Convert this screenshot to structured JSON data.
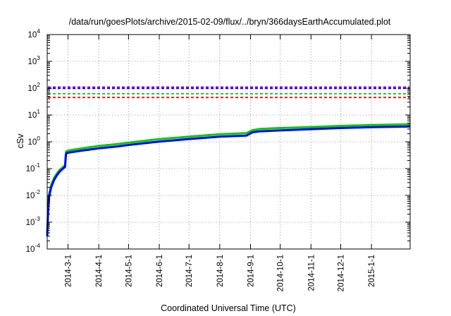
{
  "chart_data": {
    "type": "line",
    "title": "/data/run/goesPlots/archive/2015-02-09/flux/../bryn/366daysEarthAccumulated.plot",
    "xlabel": "Coordinated Universal Time (UTC)",
    "ylabel": "cSv",
    "yscale": "log",
    "ylim": [
      0.0001,
      10000
    ],
    "xlim": [
      "2014-02-08",
      "2015-02-09"
    ],
    "grid": true,
    "legend": "none",
    "y_ticks": [
      {
        "base": "10",
        "exp": "-4",
        "value": 0.0001
      },
      {
        "base": "10",
        "exp": "-3",
        "value": 0.001
      },
      {
        "base": "10",
        "exp": "-2",
        "value": 0.01
      },
      {
        "base": "10",
        "exp": "-1",
        "value": 0.1
      },
      {
        "base": "10",
        "exp": "0",
        "value": 1
      },
      {
        "base": "10",
        "exp": "1",
        "value": 10
      },
      {
        "base": "10",
        "exp": "2",
        "value": 100
      },
      {
        "base": "10",
        "exp": "3",
        "value": 1000
      },
      {
        "base": "10",
        "exp": "4",
        "value": 10000
      }
    ],
    "x_ticks": [
      {
        "label": "2014-3-1",
        "date": "2014-03-01"
      },
      {
        "label": "2014-4-1",
        "date": "2014-04-01"
      },
      {
        "label": "2014-5-1",
        "date": "2014-05-01"
      },
      {
        "label": "2014-6-1",
        "date": "2014-06-01"
      },
      {
        "label": "2014-7-1",
        "date": "2014-07-01"
      },
      {
        "label": "2014-8-1",
        "date": "2014-08-01"
      },
      {
        "label": "2014-9-1",
        "date": "2014-09-01"
      },
      {
        "label": "2014-10-1",
        "date": "2014-10-01"
      },
      {
        "label": "2014-11-1",
        "date": "2014-11-01"
      },
      {
        "label": "2014-12-1",
        "date": "2014-12-01"
      },
      {
        "label": "2015-1-1",
        "date": "2015-01-01"
      }
    ],
    "thresholds": [
      {
        "value": 110,
        "color": "#9400d3",
        "dash": "dashed"
      },
      {
        "value": 98,
        "color": "#0000ff",
        "dash": "dashed"
      },
      {
        "value": 62,
        "color": "#00cc00",
        "dash": "dashed"
      },
      {
        "value": 45,
        "color": "#ff0000",
        "dash": "dashed"
      }
    ],
    "series": [
      {
        "color": "#00cc00",
        "width": 3,
        "points": [
          [
            "2014-02-08",
            0.0004
          ],
          [
            "2014-02-09",
            0.004
          ],
          [
            "2014-02-10",
            0.011
          ],
          [
            "2014-02-12",
            0.024
          ],
          [
            "2014-02-15",
            0.045
          ],
          [
            "2014-02-18",
            0.068
          ],
          [
            "2014-02-21",
            0.092
          ],
          [
            "2014-02-24",
            0.115
          ],
          [
            "2014-02-26",
            0.135
          ],
          [
            "2014-02-27",
            0.43
          ],
          [
            "2014-03-01",
            0.47
          ],
          [
            "2014-03-15",
            0.57
          ],
          [
            "2014-04-01",
            0.7
          ],
          [
            "2014-04-20",
            0.82
          ],
          [
            "2014-05-01",
            0.93
          ],
          [
            "2014-06-01",
            1.25
          ],
          [
            "2014-07-01",
            1.55
          ],
          [
            "2014-08-01",
            1.9
          ],
          [
            "2014-08-28",
            2.1
          ],
          [
            "2014-09-03",
            2.7
          ],
          [
            "2014-09-10",
            3.0
          ],
          [
            "2014-10-01",
            3.25
          ],
          [
            "2014-11-01",
            3.55
          ],
          [
            "2014-12-01",
            3.9
          ],
          [
            "2015-01-01",
            4.2
          ],
          [
            "2015-02-09",
            4.5
          ]
        ]
      },
      {
        "color": "#0000ff",
        "width": 3,
        "points": [
          [
            "2014-02-08",
            0.0003
          ],
          [
            "2014-02-09",
            0.003
          ],
          [
            "2014-02-10",
            0.009
          ],
          [
            "2014-02-12",
            0.02
          ],
          [
            "2014-02-15",
            0.038
          ],
          [
            "2014-02-18",
            0.058
          ],
          [
            "2014-02-21",
            0.08
          ],
          [
            "2014-02-24",
            0.1
          ],
          [
            "2014-02-26",
            0.115
          ],
          [
            "2014-02-27",
            0.36
          ],
          [
            "2014-03-01",
            0.39
          ],
          [
            "2014-03-15",
            0.47
          ],
          [
            "2014-04-01",
            0.57
          ],
          [
            "2014-04-20",
            0.67
          ],
          [
            "2014-05-01",
            0.76
          ],
          [
            "2014-06-01",
            1.02
          ],
          [
            "2014-07-01",
            1.27
          ],
          [
            "2014-08-01",
            1.55
          ],
          [
            "2014-08-28",
            1.7
          ],
          [
            "2014-09-03",
            2.25
          ],
          [
            "2014-09-10",
            2.45
          ],
          [
            "2014-10-01",
            2.65
          ],
          [
            "2014-11-01",
            2.95
          ],
          [
            "2014-12-01",
            3.25
          ],
          [
            "2015-01-01",
            3.5
          ],
          [
            "2015-02-09",
            3.7
          ]
        ]
      }
    ]
  },
  "colors": {
    "axis": "#000000",
    "grid": "#a0a0a0",
    "background": "#ffffff"
  }
}
